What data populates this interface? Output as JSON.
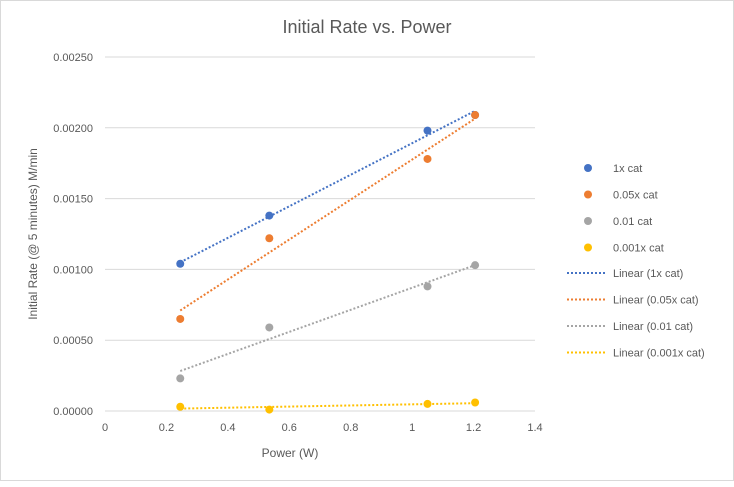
{
  "chart_data": {
    "type": "scatter",
    "title": "Initial Rate vs. Power",
    "xlabel": "Power (W)",
    "ylabel": "Initial Rate (@ 5 minutes) M/min",
    "xlim": [
      0,
      1.4
    ],
    "ylim": [
      0,
      0.0025
    ],
    "xticks": [
      "0",
      "0.2",
      "0.4",
      "0.6",
      "0.8",
      "1",
      "1.2",
      "1.4"
    ],
    "yticks": [
      "0.00000",
      "0.00050",
      "0.00100",
      "0.00150",
      "0.00200",
      "0.00250"
    ],
    "grid": "horizontal",
    "legend_position": "right",
    "series": [
      {
        "name": "1x cat",
        "trend_name": "Linear (1x cat)",
        "color": "#4472C4",
        "x": [
          0.245,
          0.535,
          1.05,
          1.205
        ],
        "y": [
          0.00104,
          0.00138,
          0.00198,
          0.00209
        ]
      },
      {
        "name": "0.05x cat",
        "trend_name": "Linear (0.05x cat)",
        "color": "#ED7D31",
        "x": [
          0.245,
          0.535,
          1.05,
          1.205
        ],
        "y": [
          0.00065,
          0.00122,
          0.00178,
          0.00209
        ]
      },
      {
        "name": "0.01 cat",
        "trend_name": "Linear (0.01 cat)",
        "color": "#A5A5A5",
        "x": [
          0.245,
          0.535,
          1.05,
          1.205
        ],
        "y": [
          0.00023,
          0.00059,
          0.00088,
          0.00103
        ]
      },
      {
        "name": "0.001x cat",
        "trend_name": "Linear (0.001x cat)",
        "color": "#FFC000",
        "x": [
          0.245,
          0.535,
          1.05,
          1.205
        ],
        "y": [
          3e-05,
          1e-05,
          5e-05,
          6e-05
        ]
      }
    ]
  }
}
